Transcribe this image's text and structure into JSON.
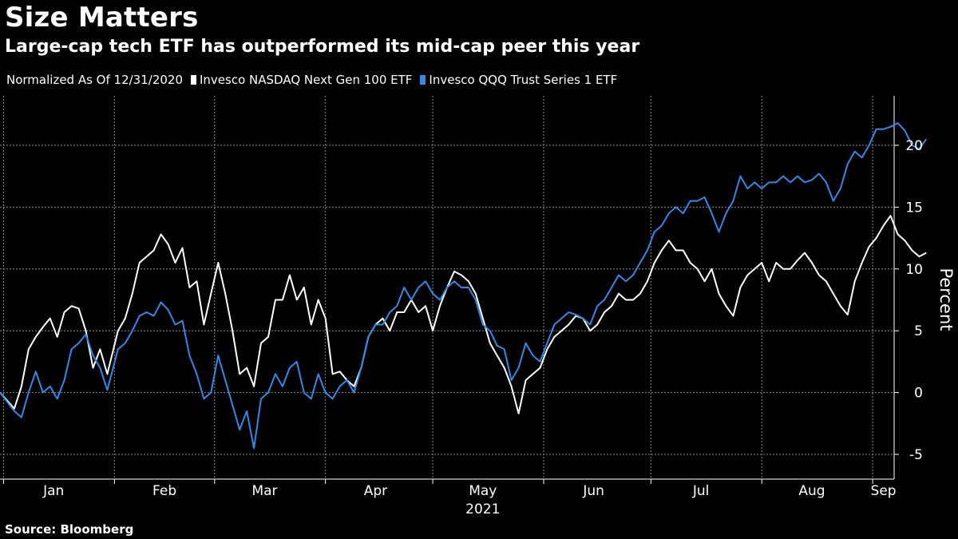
{
  "title": "Size Matters",
  "subtitle": "Large-cap tech ETF has outperformed its mid-cap peer this year",
  "legend": {
    "normalized_label": "Normalized As Of 12/31/2020",
    "series": [
      {
        "name": "Invesco NASDAQ Next Gen 100 ETF",
        "color": "#ffffff"
      },
      {
        "name": "Invesco QQQ Trust Series 1 ETF",
        "color": "#2f8ae8"
      }
    ]
  },
  "source": "Source: Bloomberg",
  "chart_data": {
    "type": "line",
    "title": "Size Matters",
    "subtitle": "Large-cap tech ETF has outperformed its mid-cap peer this year",
    "xlabel": "2021",
    "ylabel": "Percent",
    "ylim": [
      -7,
      24
    ],
    "yticks": [
      -5,
      0,
      5,
      10,
      15,
      20
    ],
    "xlim": [
      "2020-12-31",
      "2021-09-07"
    ],
    "x_months": [
      {
        "label": "Jan",
        "date": "2021-01-15"
      },
      {
        "label": "Feb",
        "date": "2021-02-15"
      },
      {
        "label": "Mar",
        "date": "2021-03-15"
      },
      {
        "label": "Apr",
        "date": "2021-04-15"
      },
      {
        "label": "May",
        "date": "2021-05-15"
      },
      {
        "label": "Jun",
        "date": "2021-06-15"
      },
      {
        "label": "Jul",
        "date": "2021-07-15"
      },
      {
        "label": "Aug",
        "date": "2021-08-15"
      },
      {
        "label": "Sep",
        "date": "2021-09-04"
      }
    ],
    "x_month_starts": [
      "2021-01-01",
      "2021-02-01",
      "2021-03-01",
      "2021-04-01",
      "2021-05-01",
      "2021-06-01",
      "2021-07-01",
      "2021-08-01",
      "2021-09-01"
    ],
    "grid": true,
    "legend_position": "top-left",
    "series": [
      {
        "name": "Invesco NASDAQ Next Gen 100 ETF",
        "color": "#ffffff",
        "points": [
          [
            "2020-12-31",
            0
          ],
          [
            "2021-01-04",
            -1.3
          ],
          [
            "2021-01-06",
            0.5
          ],
          [
            "2021-01-08",
            3.5
          ],
          [
            "2021-01-10",
            4.5
          ],
          [
            "2021-01-12",
            5.3
          ],
          [
            "2021-01-14",
            6
          ],
          [
            "2021-01-16",
            4.5
          ],
          [
            "2021-01-18",
            6.5
          ],
          [
            "2021-01-20",
            7
          ],
          [
            "2021-01-22",
            6.8
          ],
          [
            "2021-01-24",
            5
          ],
          [
            "2021-01-26",
            2
          ],
          [
            "2021-01-28",
            3.5
          ],
          [
            "2021-01-30",
            1.5
          ],
          [
            "2021-02-02",
            5
          ],
          [
            "2021-02-04",
            6
          ],
          [
            "2021-02-06",
            8
          ],
          [
            "2021-02-08",
            10.5
          ],
          [
            "2021-02-10",
            11
          ],
          [
            "2021-02-12",
            11.5
          ],
          [
            "2021-02-14",
            12.8
          ],
          [
            "2021-02-16",
            12
          ],
          [
            "2021-02-18",
            10.5
          ],
          [
            "2021-02-20",
            11.7
          ],
          [
            "2021-02-22",
            8.5
          ],
          [
            "2021-02-24",
            9
          ],
          [
            "2021-02-26",
            5.5
          ],
          [
            "2021-02-28",
            8
          ],
          [
            "2021-03-02",
            10.5
          ],
          [
            "2021-03-04",
            8
          ],
          [
            "2021-03-06",
            5
          ],
          [
            "2021-03-08",
            1.5
          ],
          [
            "2021-03-10",
            2
          ],
          [
            "2021-03-12",
            0.5
          ],
          [
            "2021-03-14",
            4
          ],
          [
            "2021-03-16",
            4.5
          ],
          [
            "2021-03-18",
            7.5
          ],
          [
            "2021-03-20",
            7.5
          ],
          [
            "2021-03-22",
            9.5
          ],
          [
            "2021-03-24",
            7.5
          ],
          [
            "2021-03-26",
            8.5
          ],
          [
            "2021-03-28",
            5.5
          ],
          [
            "2021-03-30",
            7.5
          ],
          [
            "2021-04-01",
            6
          ],
          [
            "2021-04-03",
            1.5
          ],
          [
            "2021-04-05",
            1.7
          ],
          [
            "2021-04-07",
            1
          ],
          [
            "2021-04-09",
            0.5
          ],
          [
            "2021-04-11",
            2
          ],
          [
            "2021-04-13",
            4.5
          ],
          [
            "2021-04-15",
            5.5
          ],
          [
            "2021-04-17",
            6
          ],
          [
            "2021-04-19",
            5
          ],
          [
            "2021-04-21",
            6.5
          ],
          [
            "2021-04-23",
            6.5
          ],
          [
            "2021-04-25",
            7.5
          ],
          [
            "2021-04-27",
            6.5
          ],
          [
            "2021-04-29",
            7
          ],
          [
            "2021-05-01",
            5
          ],
          [
            "2021-05-03",
            7
          ],
          [
            "2021-05-05",
            8.5
          ],
          [
            "2021-05-07",
            9.8
          ],
          [
            "2021-05-09",
            9.5
          ],
          [
            "2021-05-11",
            9
          ],
          [
            "2021-05-13",
            8
          ],
          [
            "2021-05-15",
            6
          ],
          [
            "2021-05-17",
            4
          ],
          [
            "2021-05-19",
            3
          ],
          [
            "2021-05-21",
            2
          ],
          [
            "2021-05-23",
            0.5
          ],
          [
            "2021-05-25",
            -1.7
          ],
          [
            "2021-05-27",
            1
          ],
          [
            "2021-05-29",
            1.5
          ],
          [
            "2021-05-31",
            2
          ],
          [
            "2021-06-02",
            3.5
          ],
          [
            "2021-06-04",
            4.5
          ],
          [
            "2021-06-06",
            5
          ],
          [
            "2021-06-08",
            5.5
          ],
          [
            "2021-06-10",
            6.2
          ],
          [
            "2021-06-12",
            6
          ],
          [
            "2021-06-14",
            5
          ],
          [
            "2021-06-16",
            5.5
          ],
          [
            "2021-06-18",
            6.5
          ],
          [
            "2021-06-20",
            7
          ],
          [
            "2021-06-22",
            8
          ],
          [
            "2021-06-24",
            7.5
          ],
          [
            "2021-06-26",
            7.5
          ],
          [
            "2021-06-28",
            8
          ],
          [
            "2021-06-30",
            9
          ],
          [
            "2021-07-02",
            10.5
          ],
          [
            "2021-07-04",
            11.5
          ],
          [
            "2021-07-06",
            12.3
          ],
          [
            "2021-07-08",
            11.5
          ],
          [
            "2021-07-10",
            11.5
          ],
          [
            "2021-07-12",
            10.5
          ],
          [
            "2021-07-14",
            10
          ],
          [
            "2021-07-16",
            9
          ],
          [
            "2021-07-18",
            10
          ],
          [
            "2021-07-20",
            8
          ],
          [
            "2021-07-22",
            7
          ],
          [
            "2021-07-24",
            6.2
          ],
          [
            "2021-07-26",
            8.5
          ],
          [
            "2021-07-28",
            9.5
          ],
          [
            "2021-07-30",
            10
          ],
          [
            "2021-08-01",
            10.5
          ],
          [
            "2021-08-03",
            9
          ],
          [
            "2021-08-05",
            10.5
          ],
          [
            "2021-08-07",
            10
          ],
          [
            "2021-08-09",
            10
          ],
          [
            "2021-08-11",
            10.7
          ],
          [
            "2021-08-13",
            11.3
          ],
          [
            "2021-08-15",
            10.5
          ],
          [
            "2021-08-17",
            9.5
          ],
          [
            "2021-08-19",
            9
          ],
          [
            "2021-08-21",
            8
          ],
          [
            "2021-08-23",
            7
          ],
          [
            "2021-08-25",
            6.3
          ],
          [
            "2021-08-27",
            9
          ],
          [
            "2021-08-29",
            10.5
          ],
          [
            "2021-08-31",
            11.8
          ],
          [
            "2021-09-02",
            12.5
          ],
          [
            "2021-09-04",
            13.5
          ],
          [
            "2021-09-06",
            14.3
          ],
          [
            "2021-09-08",
            12.8
          ],
          [
            "2021-09-10",
            12.3
          ],
          [
            "2021-09-12",
            11.5
          ],
          [
            "2021-09-14",
            11
          ],
          [
            "2021-09-16",
            11.3
          ]
        ]
      },
      {
        "name": "Invesco QQQ Trust Series 1 ETF",
        "color": "#2f8ae8",
        "points": [
          [
            "2020-12-31",
            0
          ],
          [
            "2021-01-04",
            -1.5
          ],
          [
            "2021-01-06",
            -2
          ],
          [
            "2021-01-08",
            0
          ],
          [
            "2021-01-10",
            1.7
          ],
          [
            "2021-01-12",
            0
          ],
          [
            "2021-01-14",
            0.5
          ],
          [
            "2021-01-16",
            -0.5
          ],
          [
            "2021-01-18",
            1
          ],
          [
            "2021-01-20",
            3.5
          ],
          [
            "2021-01-22",
            4
          ],
          [
            "2021-01-24",
            4.7
          ],
          [
            "2021-01-26",
            3
          ],
          [
            "2021-01-28",
            2
          ],
          [
            "2021-01-30",
            0.2
          ],
          [
            "2021-02-02",
            3.5
          ],
          [
            "2021-02-04",
            4
          ],
          [
            "2021-02-06",
            5
          ],
          [
            "2021-02-08",
            6.2
          ],
          [
            "2021-02-10",
            6.5
          ],
          [
            "2021-02-12",
            6.2
          ],
          [
            "2021-02-14",
            7.3
          ],
          [
            "2021-02-16",
            6.7
          ],
          [
            "2021-02-18",
            5.5
          ],
          [
            "2021-02-20",
            5.8
          ],
          [
            "2021-02-22",
            3
          ],
          [
            "2021-02-24",
            1.5
          ],
          [
            "2021-02-26",
            -0.5
          ],
          [
            "2021-02-28",
            0
          ],
          [
            "2021-03-02",
            3
          ],
          [
            "2021-03-04",
            1
          ],
          [
            "2021-03-06",
            -1
          ],
          [
            "2021-03-08",
            -3
          ],
          [
            "2021-03-10",
            -1.5
          ],
          [
            "2021-03-12",
            -4.5
          ],
          [
            "2021-03-14",
            -0.5
          ],
          [
            "2021-03-16",
            0
          ],
          [
            "2021-03-18",
            1.5
          ],
          [
            "2021-03-20",
            0.5
          ],
          [
            "2021-03-22",
            2
          ],
          [
            "2021-03-24",
            2.5
          ],
          [
            "2021-03-26",
            0
          ],
          [
            "2021-03-28",
            -0.5
          ],
          [
            "2021-03-30",
            1.5
          ],
          [
            "2021-04-01",
            0
          ],
          [
            "2021-04-03",
            -0.5
          ],
          [
            "2021-04-05",
            0.5
          ],
          [
            "2021-04-07",
            1
          ],
          [
            "2021-04-09",
            0
          ],
          [
            "2021-04-11",
            2
          ],
          [
            "2021-04-13",
            4.5
          ],
          [
            "2021-04-15",
            5.5
          ],
          [
            "2021-04-17",
            5.5
          ],
          [
            "2021-04-19",
            6.5
          ],
          [
            "2021-04-21",
            7
          ],
          [
            "2021-04-23",
            8.5
          ],
          [
            "2021-04-25",
            7.5
          ],
          [
            "2021-04-27",
            8.5
          ],
          [
            "2021-04-29",
            9
          ],
          [
            "2021-05-01",
            8
          ],
          [
            "2021-05-03",
            7.5
          ],
          [
            "2021-05-05",
            8.5
          ],
          [
            "2021-05-07",
            9
          ],
          [
            "2021-05-09",
            8.5
          ],
          [
            "2021-05-11",
            8.5
          ],
          [
            "2021-05-13",
            7.5
          ],
          [
            "2021-05-15",
            5.5
          ],
          [
            "2021-05-17",
            5
          ],
          [
            "2021-05-19",
            3.8
          ],
          [
            "2021-05-21",
            3.5
          ],
          [
            "2021-05-23",
            1
          ],
          [
            "2021-05-25",
            2
          ],
          [
            "2021-05-27",
            4
          ],
          [
            "2021-05-29",
            3
          ],
          [
            "2021-05-31",
            2.5
          ],
          [
            "2021-06-02",
            4
          ],
          [
            "2021-06-04",
            5.5
          ],
          [
            "2021-06-06",
            6
          ],
          [
            "2021-06-08",
            6.5
          ],
          [
            "2021-06-10",
            6.3
          ],
          [
            "2021-06-12",
            6
          ],
          [
            "2021-06-14",
            5.5
          ],
          [
            "2021-06-16",
            7
          ],
          [
            "2021-06-18",
            7.5
          ],
          [
            "2021-06-20",
            8.5
          ],
          [
            "2021-06-22",
            9.5
          ],
          [
            "2021-06-24",
            9
          ],
          [
            "2021-06-26",
            9.5
          ],
          [
            "2021-06-28",
            10.5
          ],
          [
            "2021-06-30",
            11.5
          ],
          [
            "2021-07-02",
            13
          ],
          [
            "2021-07-04",
            13.5
          ],
          [
            "2021-07-06",
            14.5
          ],
          [
            "2021-07-08",
            15
          ],
          [
            "2021-07-10",
            14.5
          ],
          [
            "2021-07-12",
            15.5
          ],
          [
            "2021-07-14",
            15.5
          ],
          [
            "2021-07-16",
            15.8
          ],
          [
            "2021-07-18",
            14.5
          ],
          [
            "2021-07-20",
            13
          ],
          [
            "2021-07-22",
            14.5
          ],
          [
            "2021-07-24",
            15.5
          ],
          [
            "2021-07-26",
            17.5
          ],
          [
            "2021-07-28",
            16.5
          ],
          [
            "2021-07-30",
            17
          ],
          [
            "2021-08-01",
            16.5
          ],
          [
            "2021-08-03",
            17
          ],
          [
            "2021-08-05",
            17
          ],
          [
            "2021-08-07",
            17.5
          ],
          [
            "2021-08-09",
            17
          ],
          [
            "2021-08-11",
            17.5
          ],
          [
            "2021-08-13",
            17
          ],
          [
            "2021-08-15",
            17.2
          ],
          [
            "2021-08-17",
            17.7
          ],
          [
            "2021-08-19",
            17
          ],
          [
            "2021-08-21",
            15.5
          ],
          [
            "2021-08-23",
            16.5
          ],
          [
            "2021-08-25",
            18.5
          ],
          [
            "2021-08-27",
            19.5
          ],
          [
            "2021-08-29",
            19
          ],
          [
            "2021-08-31",
            20
          ],
          [
            "2021-09-02",
            21.3
          ],
          [
            "2021-09-04",
            21.3
          ],
          [
            "2021-09-06",
            21.5
          ],
          [
            "2021-09-08",
            21.8
          ],
          [
            "2021-09-10",
            21.2
          ],
          [
            "2021-09-12",
            20
          ],
          [
            "2021-09-14",
            19.7
          ],
          [
            "2021-09-16",
            20.5
          ]
        ]
      }
    ]
  }
}
